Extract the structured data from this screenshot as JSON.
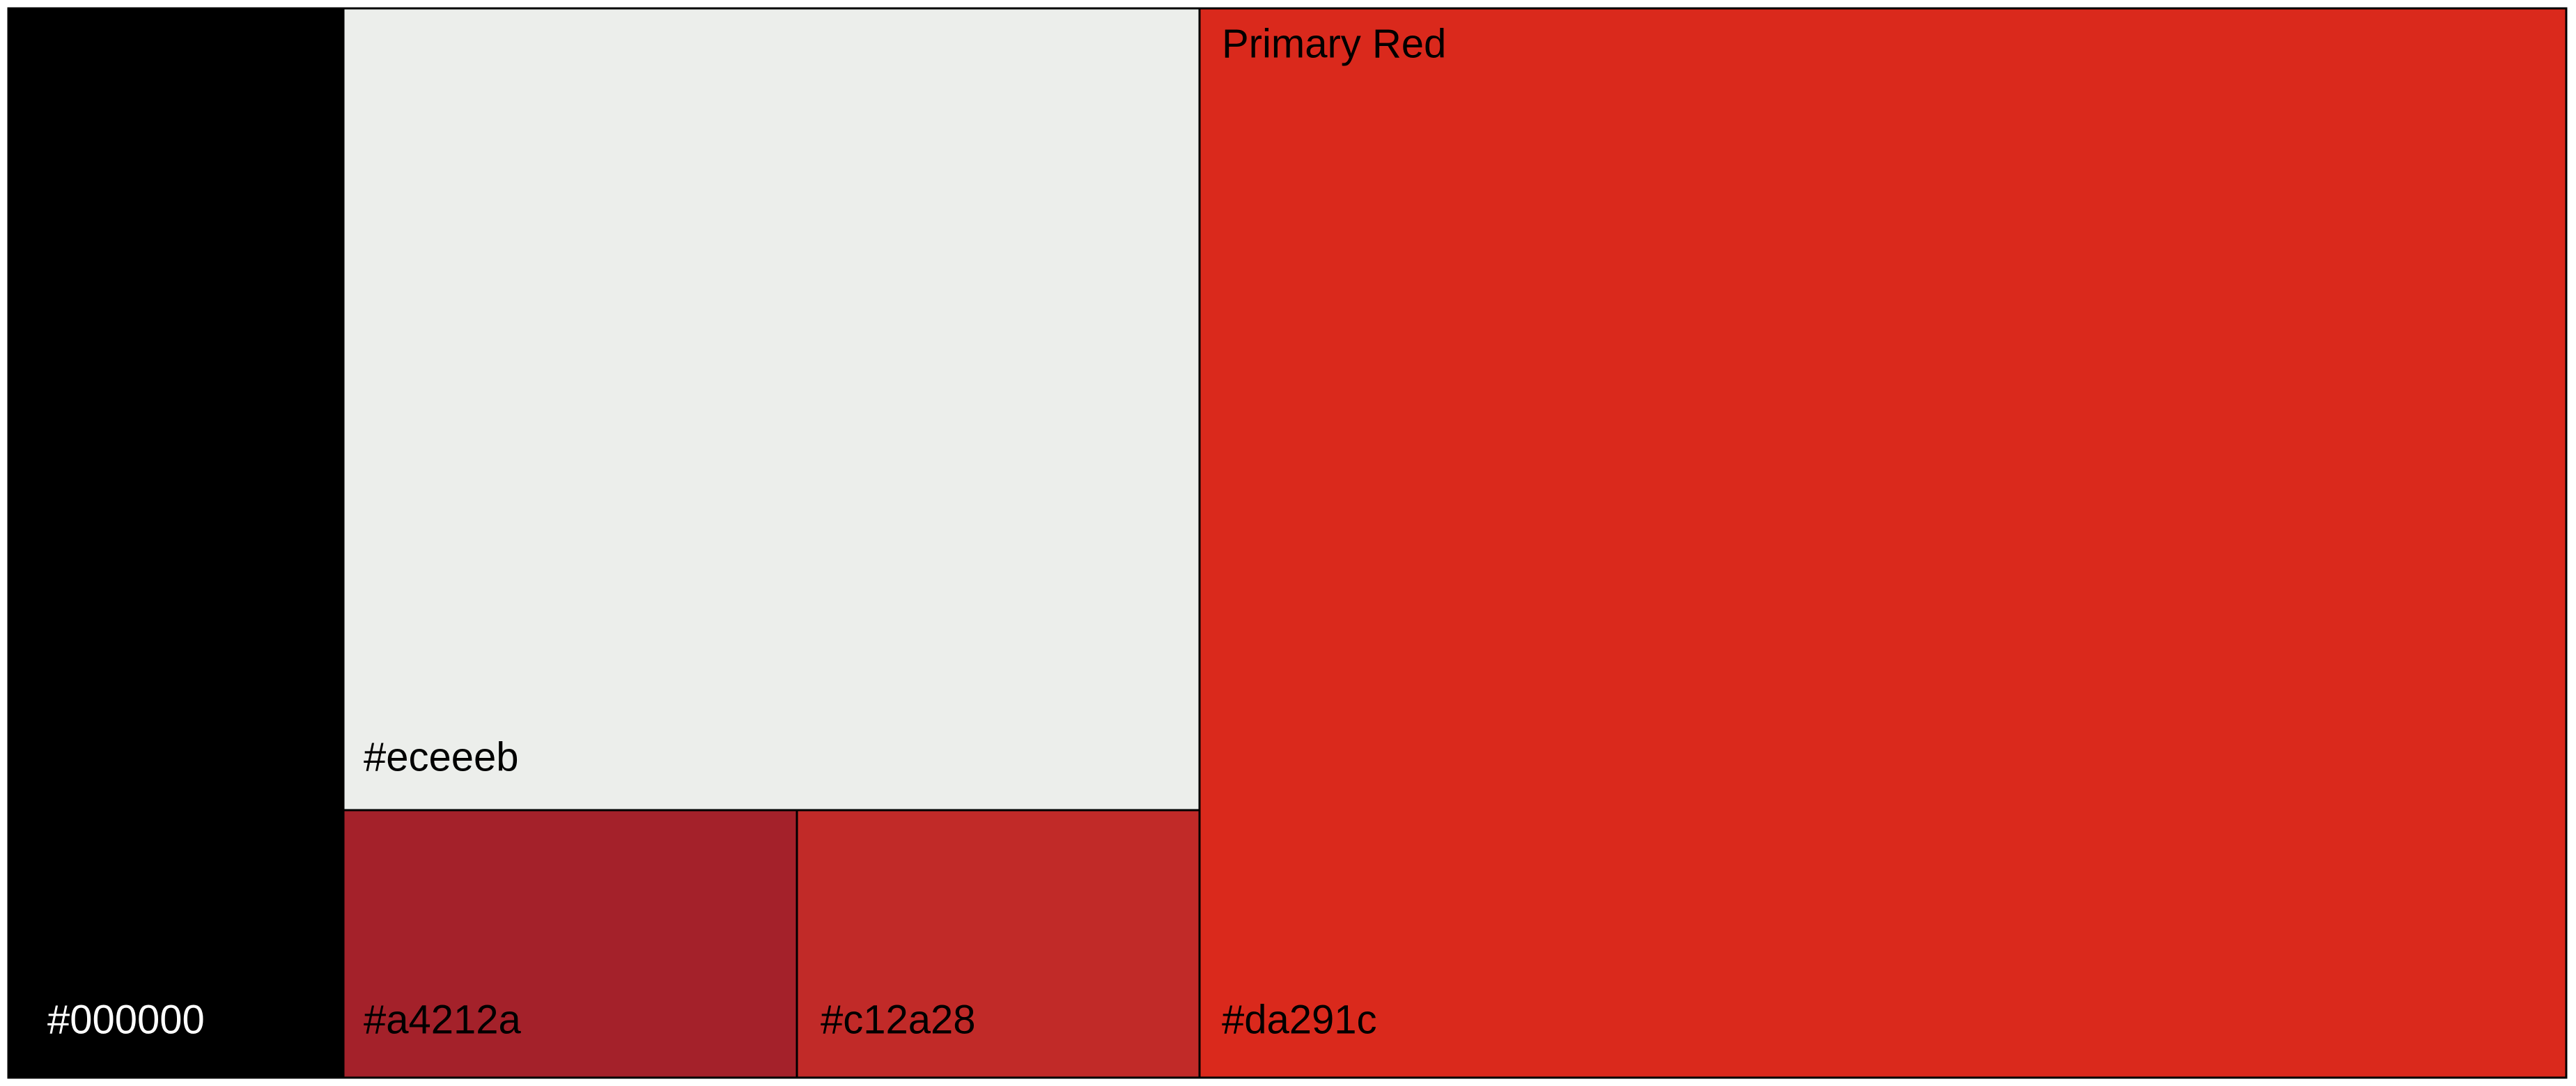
{
  "title": "Primary Red",
  "swatches": [
    {
      "label": "#000000"
    },
    {
      "label": "#eceeeb"
    },
    {
      "label": "#a4212a"
    },
    {
      "label": "#c12a28"
    },
    {
      "label": "#da291c"
    }
  ]
}
